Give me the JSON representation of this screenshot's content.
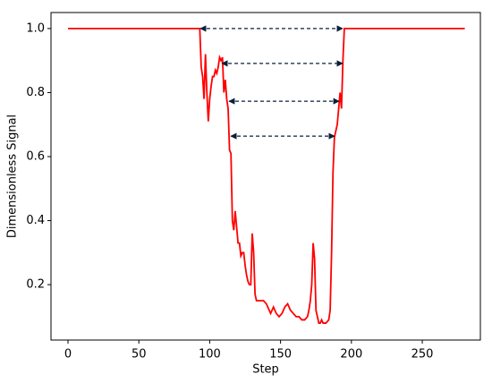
{
  "chart_data": {
    "type": "line",
    "xlabel": "Step",
    "ylabel": "Dimensionless Signal",
    "x": [
      0,
      93,
      94,
      95,
      96,
      97,
      98,
      99,
      100,
      101,
      102,
      103,
      104,
      105,
      106,
      107,
      108,
      109,
      110,
      111,
      112,
      113,
      114,
      115,
      116,
      117,
      118,
      119,
      120,
      121,
      122,
      123,
      124,
      125,
      126,
      127,
      128,
      129,
      130,
      131,
      132,
      133,
      135,
      138,
      140,
      142,
      143,
      145,
      147,
      149,
      151,
      153,
      155,
      157,
      159,
      161,
      163,
      165,
      167,
      169,
      170,
      171,
      172,
      173,
      174,
      175,
      176,
      177,
      178,
      179,
      180,
      182,
      184,
      185,
      186,
      187,
      188,
      190,
      191,
      192,
      193,
      194,
      195,
      280
    ],
    "series": [
      {
        "color": "#ff0000",
        "values": [
          1.0,
          1.0,
          0.88,
          0.85,
          0.78,
          0.92,
          0.8,
          0.71,
          0.78,
          0.82,
          0.85,
          0.85,
          0.87,
          0.86,
          0.88,
          0.91,
          0.9,
          0.91,
          0.8,
          0.84,
          0.78,
          0.75,
          0.62,
          0.61,
          0.4,
          0.37,
          0.43,
          0.38,
          0.33,
          0.33,
          0.29,
          0.3,
          0.3,
          0.26,
          0.23,
          0.21,
          0.2,
          0.2,
          0.36,
          0.3,
          0.17,
          0.15,
          0.15,
          0.15,
          0.14,
          0.12,
          0.11,
          0.13,
          0.11,
          0.1,
          0.11,
          0.13,
          0.14,
          0.12,
          0.11,
          0.1,
          0.1,
          0.09,
          0.09,
          0.1,
          0.12,
          0.15,
          0.2,
          0.33,
          0.28,
          0.12,
          0.1,
          0.08,
          0.08,
          0.09,
          0.08,
          0.08,
          0.09,
          0.12,
          0.3,
          0.55,
          0.66,
          0.7,
          0.75,
          0.8,
          0.75,
          0.9,
          1.0,
          1.0
        ]
      }
    ],
    "arrows": [
      {
        "x1": 93.4,
        "x2": 193.8,
        "y": 1.0,
        "color": "#0b1f3a"
      },
      {
        "x1": 108.6,
        "x2": 193.8,
        "y": 0.891,
        "color": "#0b1f3a"
      },
      {
        "x1": 113.6,
        "x2": 191.3,
        "y": 0.773,
        "color": "#0b1f3a"
      },
      {
        "x1": 114.9,
        "x2": 188.1,
        "y": 0.664,
        "color": "#0b1f3a"
      }
    ],
    "xlim": [
      -12,
      291
    ],
    "ylim": [
      0.027,
      1.05
    ],
    "xticks": [
      0,
      50,
      100,
      150,
      200,
      250
    ],
    "yticks": [
      0.2,
      0.4,
      0.6,
      0.8,
      {
        "value": 1,
        "label": "1.0"
      }
    ]
  }
}
